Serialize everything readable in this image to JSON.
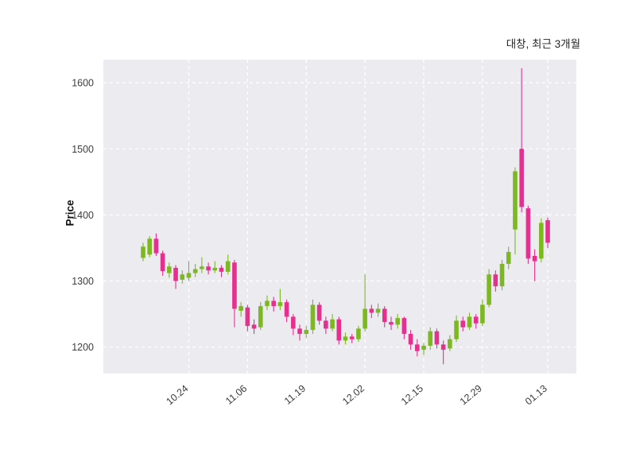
{
  "chart_data": {
    "type": "candlestick",
    "title": "대창, 최근 3개월",
    "ylabel": "Price",
    "yticks": [
      1200,
      1300,
      1400,
      1500,
      1600
    ],
    "ylim": [
      1160,
      1635
    ],
    "xticks": [
      {
        "label": "10.24",
        "index": 7
      },
      {
        "label": "11.06",
        "index": 16
      },
      {
        "label": "11.19",
        "index": 25
      },
      {
        "label": "12.02",
        "index": 34
      },
      {
        "label": "12.15",
        "index": 43
      },
      {
        "label": "12.29",
        "index": 52
      },
      {
        "label": "01.13",
        "index": 62
      }
    ],
    "grid": "dashed-white-both-axes",
    "legend": "none",
    "colors": {
      "up": "#7cb921",
      "down": "#e5308e",
      "plot_bg": "#ebebf0",
      "grid": "#ffffff",
      "tick_text": "#3d3d3d"
    },
    "ohlc_format": [
      "open",
      "high",
      "low",
      "close"
    ],
    "candles": [
      [
        1335,
        1358,
        1330,
        1352
      ],
      [
        1340,
        1368,
        1336,
        1364
      ],
      [
        1364,
        1372,
        1338,
        1342
      ],
      [
        1342,
        1346,
        1308,
        1315
      ],
      [
        1312,
        1328,
        1305,
        1322
      ],
      [
        1320,
        1324,
        1288,
        1300
      ],
      [
        1302,
        1316,
        1296,
        1310
      ],
      [
        1305,
        1330,
        1300,
        1312
      ],
      [
        1312,
        1326,
        1306,
        1318
      ],
      [
        1318,
        1336,
        1312,
        1322
      ],
      [
        1322,
        1328,
        1310,
        1316
      ],
      [
        1316,
        1330,
        1312,
        1320
      ],
      [
        1320,
        1324,
        1306,
        1314
      ],
      [
        1314,
        1340,
        1310,
        1330
      ],
      [
        1328,
        1332,
        1230,
        1258
      ],
      [
        1255,
        1268,
        1246,
        1262
      ],
      [
        1260,
        1264,
        1224,
        1232
      ],
      [
        1234,
        1242,
        1220,
        1228
      ],
      [
        1230,
        1268,
        1226,
        1262
      ],
      [
        1262,
        1278,
        1256,
        1270
      ],
      [
        1270,
        1276,
        1254,
        1262
      ],
      [
        1262,
        1288,
        1256,
        1268
      ],
      [
        1268,
        1272,
        1238,
        1246
      ],
      [
        1246,
        1250,
        1218,
        1228
      ],
      [
        1228,
        1234,
        1210,
        1220
      ],
      [
        1220,
        1232,
        1214,
        1226
      ],
      [
        1226,
        1272,
        1220,
        1264
      ],
      [
        1264,
        1268,
        1234,
        1240
      ],
      [
        1240,
        1246,
        1220,
        1228
      ],
      [
        1228,
        1250,
        1224,
        1242
      ],
      [
        1242,
        1246,
        1204,
        1210
      ],
      [
        1210,
        1222,
        1204,
        1216
      ],
      [
        1216,
        1220,
        1206,
        1212
      ],
      [
        1212,
        1232,
        1208,
        1228
      ],
      [
        1228,
        1310,
        1224,
        1258
      ],
      [
        1258,
        1264,
        1244,
        1252
      ],
      [
        1252,
        1266,
        1246,
        1258
      ],
      [
        1258,
        1262,
        1230,
        1238
      ],
      [
        1238,
        1246,
        1226,
        1234
      ],
      [
        1234,
        1250,
        1228,
        1244
      ],
      [
        1244,
        1246,
        1212,
        1220
      ],
      [
        1220,
        1226,
        1196,
        1204
      ],
      [
        1204,
        1212,
        1186,
        1194
      ],
      [
        1196,
        1206,
        1188,
        1202
      ],
      [
        1202,
        1230,
        1196,
        1224
      ],
      [
        1224,
        1228,
        1198,
        1204
      ],
      [
        1204,
        1210,
        1174,
        1196
      ],
      [
        1198,
        1218,
        1194,
        1212
      ],
      [
        1212,
        1248,
        1208,
        1240
      ],
      [
        1240,
        1246,
        1224,
        1230
      ],
      [
        1230,
        1252,
        1226,
        1246
      ],
      [
        1246,
        1250,
        1228,
        1236
      ],
      [
        1236,
        1272,
        1232,
        1264
      ],
      [
        1264,
        1318,
        1260,
        1310
      ],
      [
        1310,
        1316,
        1284,
        1292
      ],
      [
        1292,
        1332,
        1286,
        1326
      ],
      [
        1326,
        1352,
        1318,
        1344
      ],
      [
        1378,
        1472,
        1340,
        1466
      ],
      [
        1500,
        1622,
        1404,
        1412
      ],
      [
        1410,
        1414,
        1326,
        1334
      ],
      [
        1338,
        1348,
        1300,
        1330
      ],
      [
        1334,
        1395,
        1328,
        1388
      ],
      [
        1392,
        1396,
        1350,
        1358
      ]
    ]
  }
}
